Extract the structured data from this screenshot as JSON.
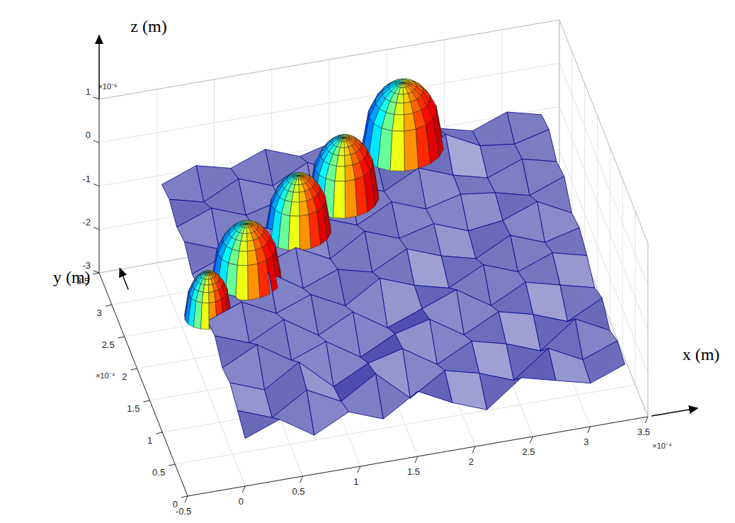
{
  "chart_data": {
    "type": "surface",
    "xlabel": "x (m)",
    "ylabel": "y (m)",
    "zlabel": "z (m)",
    "x_exponent": "×10⁻⁴",
    "y_exponent": "×10⁻⁴",
    "z_exponent": "×10⁻⁶",
    "xlim": [
      -0.5,
      3.5
    ],
    "xticks": [
      -0.5,
      0,
      0.5,
      1,
      1.5,
      2,
      2.5,
      3,
      3.5
    ],
    "ylim": [
      0,
      3.5
    ],
    "yticks": [
      0,
      0.5,
      1,
      1.5,
      2,
      2.5,
      3,
      3.5
    ],
    "zlim": [
      -3,
      1
    ],
    "zticks": [
      -3,
      -2,
      -1,
      0,
      1
    ],
    "grid": true,
    "color": "#00008b",
    "surface": {
      "x": [
        0,
        0.3,
        0.6,
        0.9,
        1.2,
        1.5,
        1.8,
        2.1,
        2.4,
        2.7,
        3.0,
        3.3
      ],
      "y": [
        0,
        0.3,
        0.6,
        0.9,
        1.2,
        1.5,
        1.8,
        2.1,
        2.4,
        2.7,
        3.0,
        3.3
      ],
      "z": [
        [
          -1.9,
          -1.6,
          -2.1,
          -1.7,
          -2.0,
          -1.5,
          -1.9,
          -2.2,
          -1.6,
          -1.8,
          -2.0,
          -1.7
        ],
        [
          -1.7,
          -2.0,
          -1.5,
          -1.9,
          -1.4,
          -2.1,
          -1.6,
          -1.8,
          -2.1,
          -1.5,
          -1.9,
          -1.6
        ],
        [
          -1.5,
          -1.8,
          -1.3,
          -2.0,
          -1.6,
          -1.4,
          -1.9,
          -1.5,
          -1.7,
          -2.0,
          -1.4,
          -1.8
        ],
        [
          -1.6,
          -1.2,
          -1.7,
          -1.4,
          -1.9,
          -1.5,
          -1.3,
          -1.8,
          -1.4,
          -1.6,
          -1.9,
          -1.5
        ],
        [
          -1.3,
          -1.6,
          -1.2,
          -1.7,
          -1.3,
          -1.8,
          -1.5,
          -1.2,
          -1.7,
          -1.3,
          -1.5,
          -1.7
        ],
        [
          -1.4,
          -1.1,
          -1.5,
          -1.2,
          -1.6,
          -1.1,
          -1.4,
          -1.6,
          -1.2,
          -1.5,
          -1.2,
          -1.4
        ],
        [
          -1.1,
          -1.4,
          -1.0,
          -1.5,
          -1.2,
          -1.4,
          -1.0,
          -1.3,
          -1.5,
          -1.1,
          -1.4,
          -1.2
        ],
        [
          -1.2,
          -0.9,
          -1.3,
          -1.0,
          -1.4,
          -0.9,
          -1.2,
          -1.0,
          -1.3,
          -1.2,
          -0.9,
          -1.3
        ],
        [
          -0.9,
          -1.2,
          -0.8,
          -1.1,
          -0.9,
          -1.2,
          -0.8,
          -1.1,
          -0.9,
          -1.0,
          -1.2,
          -0.9
        ],
        [
          -1.0,
          -0.7,
          -1.0,
          -0.8,
          -1.1,
          -0.7,
          -1.0,
          -0.6,
          -0.9,
          -1.1,
          -0.8,
          -1.0
        ],
        [
          -0.8,
          -1.0,
          -0.6,
          -0.9,
          -0.5,
          -0.9,
          -0.7,
          -1.0,
          -0.4,
          -0.8,
          -0.9,
          -0.7
        ],
        [
          -0.9,
          -0.6,
          -0.8,
          -0.5,
          -0.8,
          -0.6,
          -0.9,
          -0.5,
          -0.7,
          -0.9,
          -0.6,
          -0.8
        ]
      ]
    },
    "caps": [
      {
        "x": 0.05,
        "y": 1.7,
        "z": -1.6,
        "radius": 0.2,
        "height": 1.0
      },
      {
        "x": 0.45,
        "y": 2.0,
        "z": -1.4,
        "radius": 0.3,
        "height": 1.3
      },
      {
        "x": 1.0,
        "y": 2.45,
        "z": -1.2,
        "radius": 0.28,
        "height": 1.3
      },
      {
        "x": 1.45,
        "y": 2.7,
        "z": -1.0,
        "radius": 0.3,
        "height": 1.4
      },
      {
        "x": 2.05,
        "y": 3.1,
        "z": -0.7,
        "radius": 0.35,
        "height": 1.5
      }
    ]
  }
}
